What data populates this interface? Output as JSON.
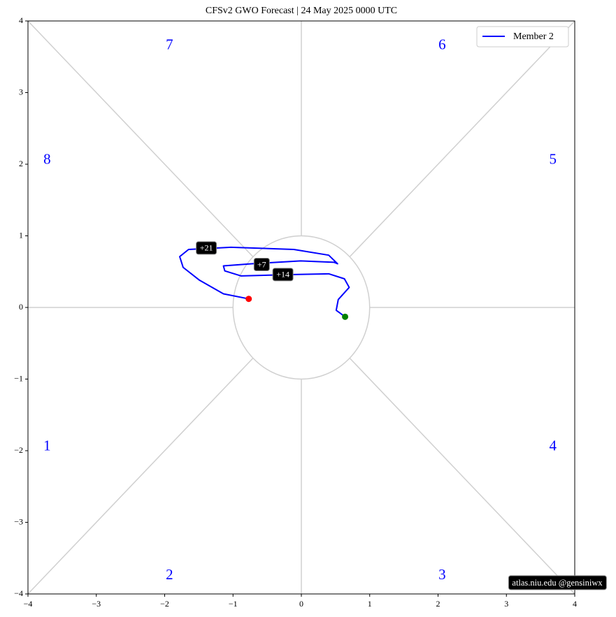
{
  "chart_data": {
    "type": "phase",
    "title": "CFSv2 GWO Forecast   |   24  May  2025 0000 UTC",
    "xlim": [
      -4,
      4
    ],
    "ylim": [
      -4,
      4
    ],
    "xticks": [
      {
        "value": -4,
        "label": "−4"
      },
      {
        "value": -3,
        "label": "−3"
      },
      {
        "value": -2,
        "label": "−2"
      },
      {
        "value": -1,
        "label": "−1"
      },
      0,
      1,
      2,
      3,
      4
    ],
    "yticks": [
      {
        "value": -4,
        "label": "−4"
      },
      {
        "value": -3,
        "label": "−3"
      },
      {
        "value": -2,
        "label": "−2"
      },
      {
        "value": -1,
        "label": "−1"
      },
      0,
      1,
      2,
      3,
      4
    ],
    "phase_labels": [
      "1",
      "2",
      "3",
      "4",
      "5",
      "6",
      "7",
      "8"
    ],
    "phase_label_color": "#0000ff",
    "legend": "upper right",
    "series": [
      {
        "name": "Member 2",
        "color": "#0000ff",
        "x": [
          0.64,
          0.51,
          0.54,
          0.7,
          0.63,
          0.4,
          -0.11,
          -0.88,
          -1.12,
          -1.14,
          -0.73,
          -0.01,
          0.48,
          0.53,
          0.4,
          -0.11,
          -1.03,
          -1.65,
          -1.78,
          -1.73,
          -1.49,
          -1.14,
          -0.77
        ],
        "values": [
          -0.13,
          -0.04,
          0.11,
          0.28,
          0.4,
          0.47,
          0.46,
          0.44,
          0.51,
          0.58,
          0.61,
          0.65,
          0.63,
          0.61,
          0.73,
          0.81,
          0.84,
          0.81,
          0.71,
          0.56,
          0.38,
          0.19,
          0.12
        ]
      }
    ],
    "start_color": "#008000",
    "end_color": "#ff0000",
    "annotations": [
      {
        "text": "+7",
        "x": -0.58,
        "y": 0.6
      },
      {
        "text": "+14",
        "x": -0.27,
        "y": 0.46
      },
      {
        "text": "+21",
        "x": -1.39,
        "y": 0.83
      }
    ],
    "credit": "atlas.niu.edu  @gensiniwx"
  }
}
